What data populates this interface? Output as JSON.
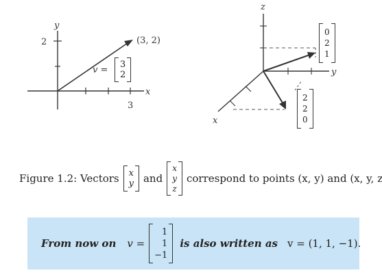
{
  "fig2d": {
    "axis_y": "y",
    "axis_x": "x",
    "tick_y": "2",
    "tick_x": "3",
    "point": "(3, 2)",
    "v_label": "v =",
    "vec": [
      "3",
      "2"
    ]
  },
  "fig3d": {
    "axis_z": "z",
    "axis_y": "y",
    "axis_x": "x",
    "vec_top": [
      "0",
      "2",
      "1"
    ],
    "vec_bottom": [
      "2",
      "2",
      "0"
    ]
  },
  "caption": {
    "lead": "Figure 1.2: Vectors",
    "vec2": [
      "x",
      "y"
    ],
    "and": "and",
    "vec3": [
      "x",
      "y",
      "z"
    ],
    "tail": "correspond to points (x, y) and (x, y, z)."
  },
  "box": {
    "lead": "From now on",
    "v_eq": "v =",
    "vec": [
      "1",
      "1",
      "−1"
    ],
    "mid": "is also written as",
    "tail": "v = (1, 1, −1)."
  },
  "colors": {
    "box_bg": "#c9e4f6"
  }
}
